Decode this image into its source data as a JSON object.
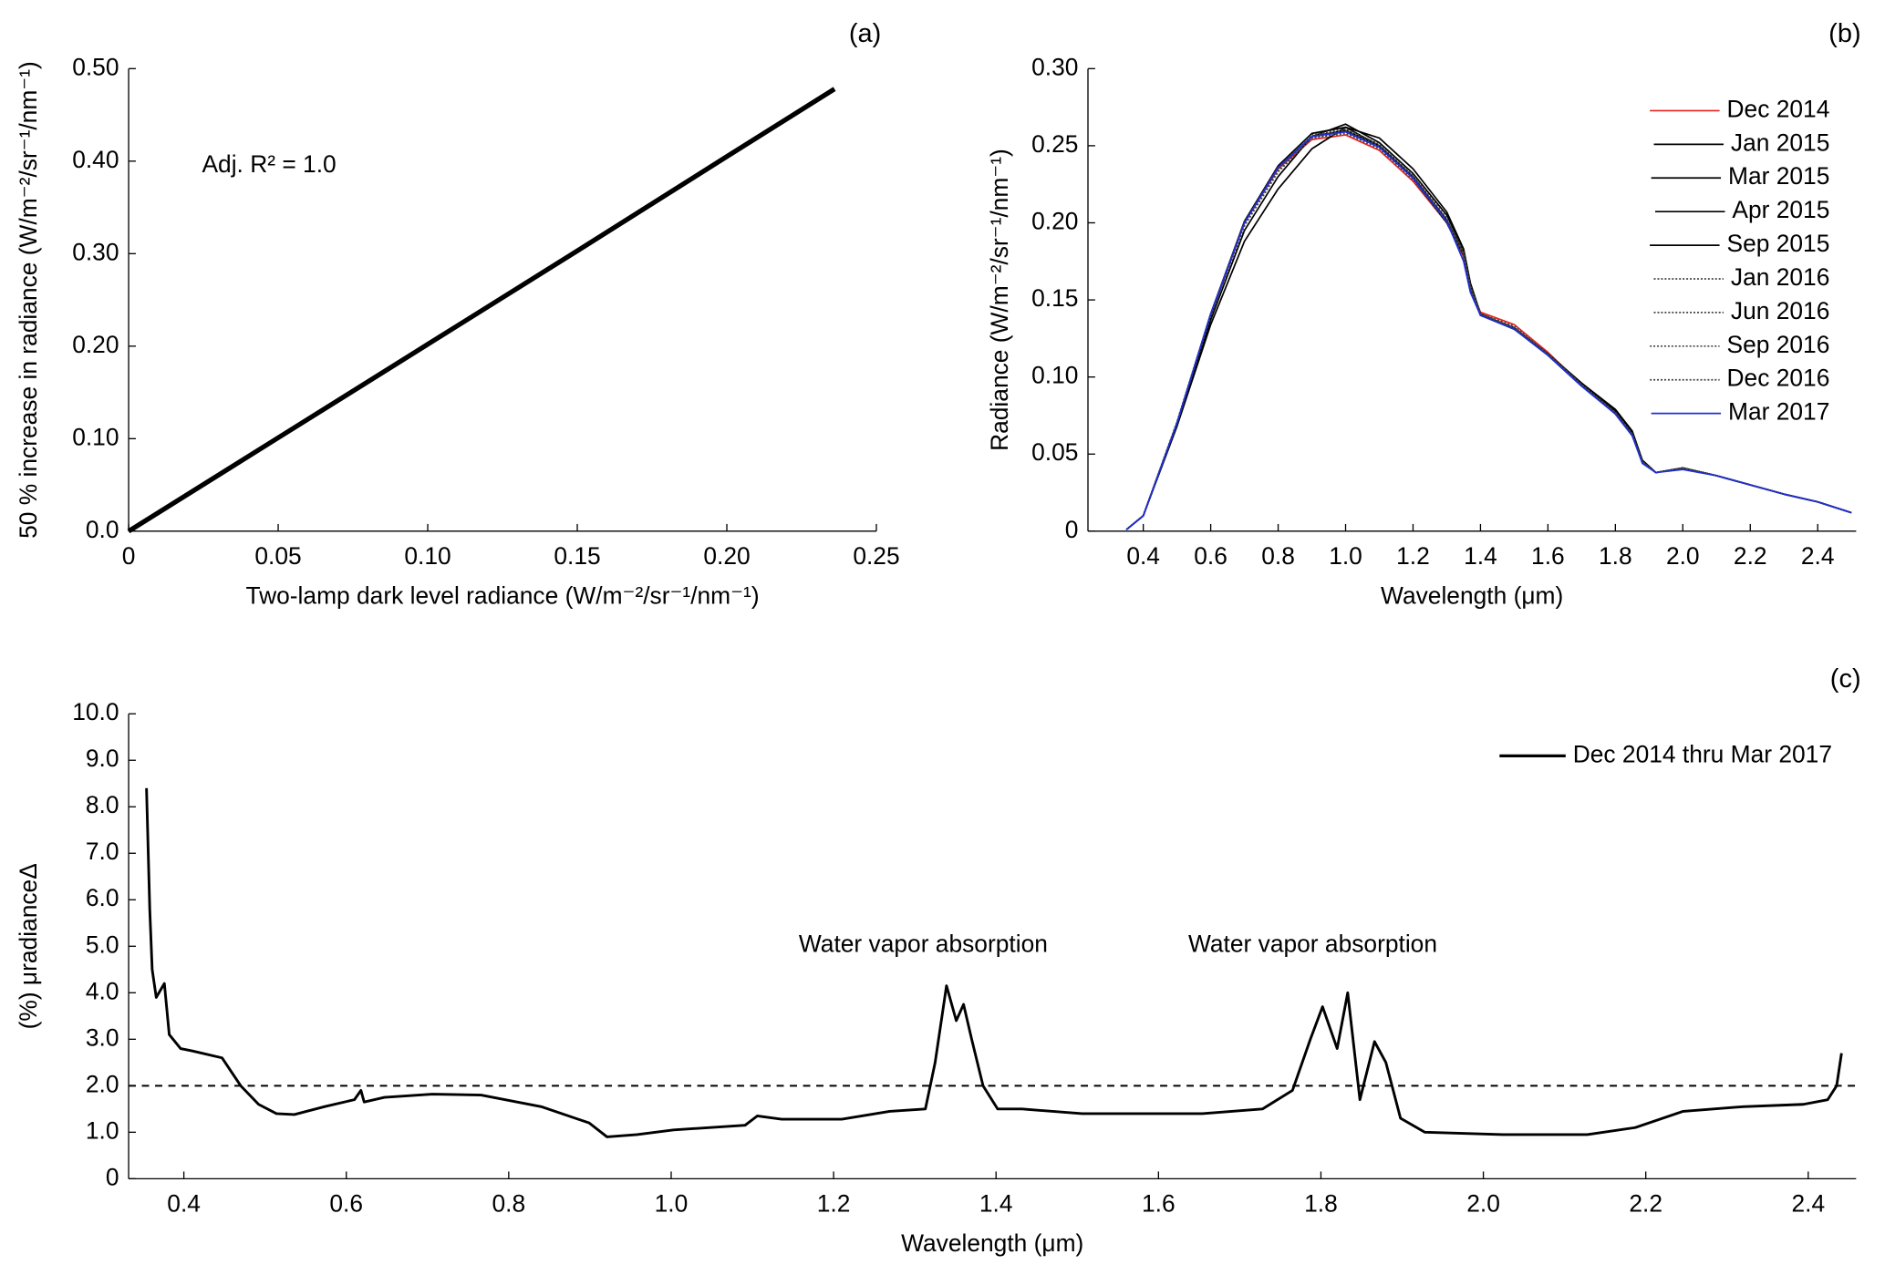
{
  "chart_data": [
    {
      "type": "line",
      "panel_label": "(a)",
      "x_label": "Two-lamp dark level radiance (W/m⁻²/sr⁻¹/nm⁻¹)",
      "y_label": "50 % increase in radiance (W/m⁻²/sr⁻¹/nm⁻¹)",
      "annotations": [
        "Adj. R² = 1.0"
      ],
      "x": [
        0,
        0.05,
        0.1,
        0.15,
        0.2,
        0.236
      ],
      "series": [
        {
          "color": "#000000",
          "values": [
            0,
            0.101,
            0.202,
            0.303,
            0.405,
            0.478
          ]
        }
      ],
      "xlim": [
        0,
        0.25
      ],
      "ylim": [
        0,
        0.5
      ],
      "xticks": [
        0,
        0.05,
        {
          "value": 0.1,
          "label": "0.10"
        },
        0.15,
        {
          "value": 0.2,
          "label": "0.20"
        },
        0.25
      ],
      "yticks": [
        {
          "value": 0,
          "label": "0.0"
        },
        {
          "value": 0.1,
          "label": "0.10"
        },
        {
          "value": 0.2,
          "label": "0.20"
        },
        {
          "value": 0.3,
          "label": "0.30"
        },
        {
          "value": 0.4,
          "label": "0.40"
        },
        {
          "value": 0.5,
          "label": "0.50"
        }
      ]
    },
    {
      "type": "line",
      "panel_label": "(b)",
      "x_label": "Wavelength (μm)",
      "y_label": "Radiance (W/m⁻²/sr⁻¹/nm⁻¹)",
      "legend": "upper right",
      "x": [
        0.35,
        0.4,
        0.5,
        0.6,
        0.7,
        0.8,
        0.9,
        1.0,
        1.1,
        1.2,
        1.3,
        1.35,
        1.37,
        1.4,
        1.5,
        1.6,
        1.7,
        1.8,
        1.85,
        1.88,
        1.92,
        2.0,
        2.1,
        2.2,
        2.3,
        2.4,
        2.5
      ],
      "series": [
        {
          "name": "Dec 2014",
          "color": "#e8231f",
          "values": [
            0.001,
            0.01,
            0.07,
            0.14,
            0.2,
            0.235,
            0.254,
            0.257,
            0.247,
            0.227,
            0.2,
            0.178,
            0.158,
            0.142,
            0.134,
            0.116,
            0.095,
            0.076,
            0.062,
            0.045,
            0.038,
            0.041,
            0.036,
            0.03,
            0.024,
            0.019,
            0.012
          ]
        },
        {
          "name": "Jan 2015",
          "color": "#000000",
          "values": [
            0.001,
            0.01,
            0.069,
            0.137,
            0.195,
            0.23,
            0.256,
            0.264,
            0.252,
            0.232,
            0.205,
            0.182,
            0.16,
            0.14,
            0.131,
            0.115,
            0.096,
            0.078,
            0.064,
            0.046,
            0.038,
            0.041,
            0.036,
            0.03,
            0.024,
            0.019,
            0.012
          ]
        },
        {
          "name": "Mar 2015",
          "color": "#000000",
          "values": [
            0.001,
            0.01,
            0.07,
            0.14,
            0.2,
            0.236,
            0.256,
            0.26,
            0.25,
            0.23,
            0.202,
            0.18,
            0.157,
            0.14,
            0.132,
            0.115,
            0.095,
            0.077,
            0.063,
            0.045,
            0.038,
            0.041,
            0.036,
            0.03,
            0.024,
            0.019,
            0.012
          ]
        },
        {
          "name": "Apr 2015",
          "color": "#000000",
          "values": [
            0.001,
            0.01,
            0.068,
            0.134,
            0.188,
            0.222,
            0.248,
            0.262,
            0.255,
            0.235,
            0.207,
            0.183,
            0.161,
            0.141,
            0.131,
            0.115,
            0.096,
            0.079,
            0.065,
            0.046,
            0.038,
            0.041,
            0.036,
            0.03,
            0.024,
            0.019,
            0.012
          ]
        },
        {
          "name": "Sep 2015",
          "color": "#000000",
          "values": [
            0.001,
            0.01,
            0.07,
            0.141,
            0.201,
            0.237,
            0.258,
            0.262,
            0.25,
            0.229,
            0.2,
            0.179,
            0.158,
            0.14,
            0.132,
            0.115,
            0.095,
            0.076,
            0.062,
            0.045,
            0.038,
            0.041,
            0.036,
            0.03,
            0.024,
            0.019,
            0.012
          ]
        },
        {
          "name": "Jan 2016",
          "color": "#444444",
          "line_style": "dotted",
          "values": [
            0.001,
            0.01,
            0.07,
            0.139,
            0.198,
            0.233,
            0.255,
            0.259,
            0.249,
            0.229,
            0.201,
            0.18,
            0.158,
            0.141,
            0.132,
            0.115,
            0.095,
            0.077,
            0.063,
            0.045,
            0.038,
            0.041,
            0.036,
            0.03,
            0.024,
            0.019,
            0.012
          ]
        },
        {
          "name": "Jun 2016",
          "color": "#444444",
          "line_style": "dotted",
          "values": [
            0.001,
            0.01,
            0.071,
            0.141,
            0.2,
            0.236,
            0.257,
            0.261,
            0.251,
            0.231,
            0.203,
            0.181,
            0.159,
            0.141,
            0.132,
            0.115,
            0.095,
            0.077,
            0.063,
            0.045,
            0.038,
            0.041,
            0.036,
            0.03,
            0.024,
            0.019,
            0.012
          ]
        },
        {
          "name": "Sep 2016",
          "color": "#444444",
          "line_style": "dotted",
          "values": [
            0.001,
            0.01,
            0.07,
            0.14,
            0.199,
            0.234,
            0.255,
            0.258,
            0.248,
            0.228,
            0.2,
            0.179,
            0.157,
            0.141,
            0.133,
            0.115,
            0.095,
            0.076,
            0.062,
            0.045,
            0.038,
            0.041,
            0.036,
            0.03,
            0.024,
            0.019,
            0.012
          ]
        },
        {
          "name": "Dec 2016",
          "color": "#444444",
          "line_style": "dotted",
          "values": [
            0.001,
            0.01,
            0.07,
            0.14,
            0.2,
            0.235,
            0.256,
            0.26,
            0.25,
            0.23,
            0.202,
            0.18,
            0.158,
            0.141,
            0.132,
            0.115,
            0.095,
            0.077,
            0.063,
            0.045,
            0.038,
            0.041,
            0.036,
            0.03,
            0.024,
            0.019,
            0.012
          ]
        },
        {
          "name": "Mar 2017",
          "color": "#1f2fd6",
          "values": [
            0.001,
            0.01,
            0.07,
            0.141,
            0.2,
            0.236,
            0.256,
            0.259,
            0.249,
            0.229,
            0.201,
            0.175,
            0.155,
            0.14,
            0.131,
            0.114,
            0.094,
            0.076,
            0.062,
            0.044,
            0.038,
            0.04,
            0.036,
            0.03,
            0.024,
            0.019,
            0.012
          ]
        }
      ],
      "xlim": [
        0.236,
        2.514
      ],
      "ylim": [
        0,
        0.3
      ],
      "xticks": [
        0.4,
        0.6,
        0.8,
        {
          "value": 1,
          "label": "1.0"
        },
        1.2,
        1.4,
        1.6,
        1.8,
        {
          "value": 2,
          "label": "2.0"
        },
        2.2,
        2.4
      ],
      "yticks": [
        0,
        0.05,
        {
          "value": 0.1,
          "label": "0.10"
        },
        0.15,
        {
          "value": 0.2,
          "label": "0.20"
        },
        0.25,
        {
          "value": 0.3,
          "label": "0.30"
        }
      ]
    },
    {
      "type": "line",
      "panel_label": "(c)",
      "x_label": "Wavelength (μm)",
      "y_label": "(%) μradianceΔ",
      "legend": "upper right",
      "annotations": [
        "Water vapor absorption",
        "Water vapor absorption"
      ],
      "reference_line": 2,
      "x": [
        0.354,
        0.358,
        0.361,
        0.366,
        0.376,
        0.382,
        0.396,
        0.41,
        0.447,
        0.47,
        0.492,
        0.514,
        0.536,
        0.573,
        0.61,
        0.618,
        0.622,
        0.647,
        0.706,
        0.766,
        0.84,
        0.899,
        0.921,
        0.958,
        1.003,
        1.091,
        1.106,
        1.136,
        1.21,
        1.269,
        1.313,
        1.325,
        1.339,
        1.351,
        1.36,
        1.37,
        1.384,
        1.402,
        1.432,
        1.506,
        1.58,
        1.654,
        1.728,
        1.765,
        1.787,
        1.802,
        1.82,
        1.833,
        1.848,
        1.866,
        1.88,
        1.898,
        1.928,
        2.024,
        2.128,
        2.187,
        2.246,
        2.32,
        2.394,
        2.424,
        2.435,
        2.441
      ],
      "series": [
        {
          "name": "Dec 2014 thru Mar 2017",
          "color": "#000000",
          "values": [
            8.4,
            5.8,
            4.5,
            3.9,
            4.2,
            3.1,
            2.8,
            2.75,
            2.6,
            2.0,
            1.6,
            1.4,
            1.38,
            1.55,
            1.7,
            1.9,
            1.65,
            1.75,
            1.82,
            1.8,
            1.55,
            1.2,
            0.9,
            0.95,
            1.05,
            1.15,
            1.35,
            1.28,
            1.28,
            1.45,
            1.5,
            2.5,
            4.15,
            3.4,
            3.75,
            3.0,
            2.0,
            1.5,
            1.5,
            1.4,
            1.4,
            1.4,
            1.5,
            1.9,
            3.0,
            3.7,
            2.8,
            4.0,
            1.7,
            2.95,
            2.5,
            1.3,
            1.0,
            0.95,
            0.95,
            1.1,
            1.45,
            1.55,
            1.6,
            1.7,
            2.0,
            2.7
          ]
        }
      ],
      "xlim": [
        0.332,
        2.459
      ],
      "ylim": [
        0,
        10
      ],
      "xticks": [
        0.4,
        0.6,
        0.8,
        {
          "value": 1,
          "label": "1.0"
        },
        1.2,
        1.4,
        1.6,
        1.8,
        {
          "value": 2,
          "label": "2.0"
        },
        2.2,
        2.4
      ],
      "yticks": [
        0,
        {
          "value": 1,
          "label": "1.0"
        },
        {
          "value": 2,
          "label": "2.0"
        },
        {
          "value": 3,
          "label": "3.0"
        },
        {
          "value": 4,
          "label": "4.0"
        },
        {
          "value": 5,
          "label": "5.0"
        },
        {
          "value": 6,
          "label": "6.0"
        },
        {
          "value": 7,
          "label": "7.0"
        },
        {
          "value": 8,
          "label": "8.0"
        },
        {
          "value": 9,
          "label": "9.0"
        },
        {
          "value": 10,
          "label": "10.0"
        }
      ]
    }
  ]
}
